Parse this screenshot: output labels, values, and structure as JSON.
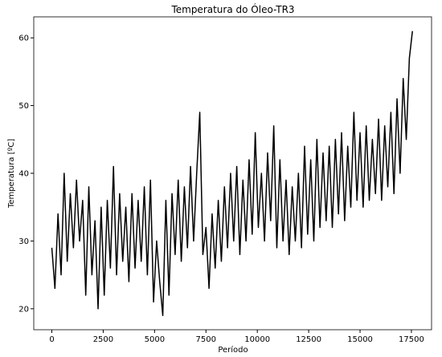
{
  "chart_data": {
    "type": "line",
    "title": "Temperatura do Óleo-TR3",
    "x_label": "Período",
    "y_label": "Temperatura [ºC]",
    "color": "#000000",
    "x": [
      0,
      150,
      300,
      450,
      600,
      750,
      900,
      1050,
      1200,
      1350,
      1500,
      1650,
      1800,
      1950,
      2100,
      2250,
      2400,
      2550,
      2700,
      2850,
      3000,
      3150,
      3300,
      3450,
      3600,
      3750,
      3900,
      4050,
      4200,
      4350,
      4500,
      4650,
      4800,
      4950,
      5100,
      5250,
      5400,
      5550,
      5700,
      5850,
      6000,
      6150,
      6300,
      6450,
      6600,
      6750,
      6900,
      7050,
      7200,
      7350,
      7500,
      7650,
      7800,
      7950,
      8100,
      8250,
      8400,
      8550,
      8700,
      8850,
      9000,
      9150,
      9300,
      9450,
      9600,
      9750,
      9900,
      10050,
      10200,
      10350,
      10500,
      10650,
      10800,
      10950,
      11100,
      11250,
      11400,
      11550,
      11700,
      11850,
      12000,
      12150,
      12300,
      12450,
      12600,
      12750,
      12900,
      13050,
      13200,
      13350,
      13500,
      13650,
      13800,
      13950,
      14100,
      14250,
      14400,
      14550,
      14700,
      14850,
      15000,
      15150,
      15300,
      15450,
      15600,
      15750,
      15900,
      16050,
      16200,
      16350,
      16500,
      16650,
      16800,
      16950,
      17100,
      17250,
      17400,
      17550
    ],
    "values": [
      29,
      23,
      34,
      25,
      40,
      27,
      37,
      29,
      39,
      30,
      36,
      22,
      38,
      25,
      33,
      20,
      35,
      22,
      36,
      26,
      41,
      25,
      37,
      27,
      35,
      24,
      37,
      26,
      36,
      27,
      38,
      25,
      39,
      21,
      30,
      24,
      19,
      36,
      22,
      37,
      28,
      39,
      27,
      38,
      29,
      41,
      30,
      40,
      49,
      28,
      32,
      23,
      34,
      26,
      36,
      27,
      38,
      29,
      40,
      30,
      41,
      28,
      39,
      30,
      42,
      31,
      46,
      32,
      40,
      30,
      43,
      33,
      47,
      29,
      42,
      30,
      39,
      28,
      38,
      30,
      40,
      29,
      44,
      31,
      42,
      30,
      45,
      32,
      43,
      33,
      44,
      32,
      45,
      34,
      46,
      33,
      44,
      35,
      49,
      36,
      46,
      35,
      47,
      36,
      45,
      37,
      48,
      36,
      47,
      38,
      49,
      37,
      51,
      40,
      54,
      45,
      57,
      61
    ],
    "xlim": [
      -880,
      18480
    ],
    "ylim": [
      16.9,
      63.1
    ],
    "xticks": [
      0,
      2500,
      5000,
      7500,
      10000,
      12500,
      15000,
      17500
    ],
    "yticks": [
      20,
      30,
      40,
      50,
      60
    ]
  }
}
